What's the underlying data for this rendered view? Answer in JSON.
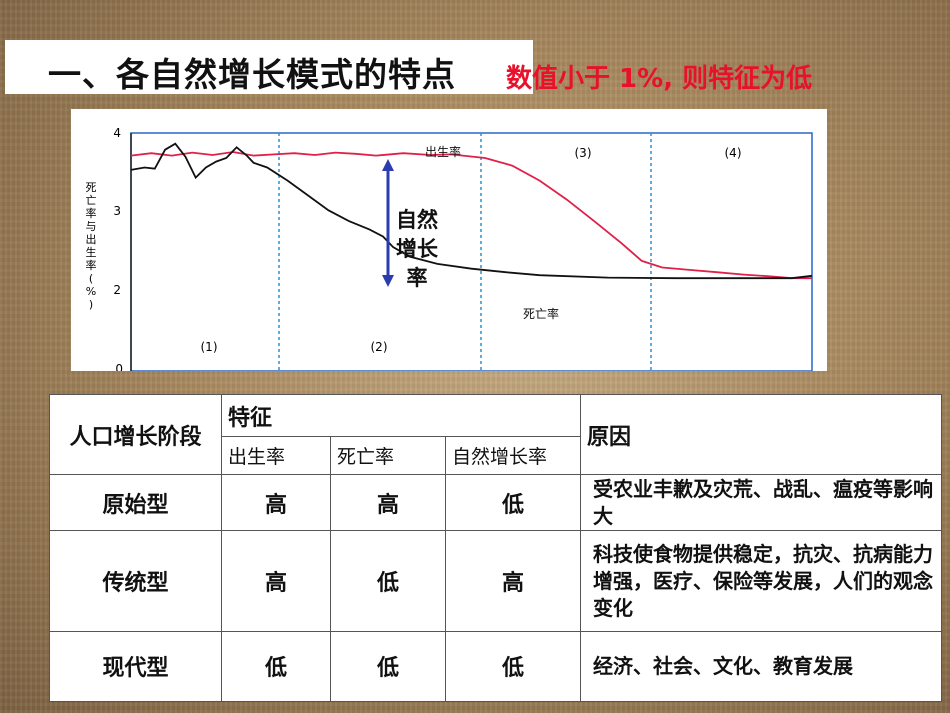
{
  "title": "一、各自然增长模式的特点",
  "title_note": "数值小于 1%, 则特征为低",
  "chart_data": {
    "type": "line",
    "ylabel": "死亡率与出生率(%)",
    "ylim": [
      0,
      4
    ],
    "yticks": [
      "4",
      "3",
      "2",
      "0"
    ],
    "stage_labels": [
      "(1)",
      "(2)",
      "(3)",
      "(4)"
    ],
    "series": [
      {
        "name": "出生率",
        "color": "#e0204a",
        "points": [
          [
            0,
            3.62
          ],
          [
            3,
            3.66
          ],
          [
            6,
            3.62
          ],
          [
            9,
            3.67
          ],
          [
            12,
            3.63
          ],
          [
            15,
            3.68
          ],
          [
            18,
            3.62
          ],
          [
            21,
            3.64
          ],
          [
            24,
            3.66
          ],
          [
            27,
            3.63
          ],
          [
            30,
            3.67
          ],
          [
            33,
            3.65
          ],
          [
            36,
            3.62
          ],
          [
            40,
            3.66
          ],
          [
            44,
            3.63
          ],
          [
            47,
            3.64
          ],
          [
            52,
            3.58
          ],
          [
            56,
            3.45
          ],
          [
            60,
            3.2
          ],
          [
            64,
            2.88
          ],
          [
            68,
            2.52
          ],
          [
            72,
            2.15
          ],
          [
            75,
            1.85
          ],
          [
            78,
            1.74
          ],
          [
            82,
            1.7
          ],
          [
            86,
            1.66
          ],
          [
            90,
            1.62
          ],
          [
            94,
            1.59
          ],
          [
            97,
            1.56
          ],
          [
            100,
            1.56
          ]
        ]
      },
      {
        "name": "死亡率",
        "color": "#111111",
        "points": [
          [
            0,
            3.38
          ],
          [
            2,
            3.42
          ],
          [
            3.5,
            3.4
          ],
          [
            5,
            3.72
          ],
          [
            6.5,
            3.82
          ],
          [
            8,
            3.6
          ],
          [
            9.5,
            3.25
          ],
          [
            11,
            3.42
          ],
          [
            12.5,
            3.52
          ],
          [
            14,
            3.58
          ],
          [
            15.5,
            3.76
          ],
          [
            17,
            3.62
          ],
          [
            18,
            3.5
          ],
          [
            20,
            3.42
          ],
          [
            23,
            3.2
          ],
          [
            26,
            2.95
          ],
          [
            29,
            2.7
          ],
          [
            32,
            2.52
          ],
          [
            35,
            2.38
          ],
          [
            37,
            2.26
          ],
          [
            38.5,
            2.08
          ],
          [
            41,
            1.92
          ],
          [
            45,
            1.8
          ],
          [
            50,
            1.72
          ],
          [
            55,
            1.66
          ],
          [
            60,
            1.61
          ],
          [
            70,
            1.57
          ],
          [
            80,
            1.56
          ],
          [
            90,
            1.56
          ],
          [
            97,
            1.56
          ],
          [
            100,
            1.6
          ]
        ]
      }
    ],
    "annotations": {
      "birth_label": "出生率",
      "death_label": "死亡率",
      "natural_growth_label": "自然增长率"
    }
  },
  "table": {
    "header": {
      "stage": "人口增长阶段",
      "features": "特征",
      "birth_rate": "出生率",
      "death_rate": "死亡率",
      "natural_growth": "自然增长率",
      "reason": "原因"
    },
    "rows": [
      {
        "stage": "原始型",
        "birth": "高",
        "death": "高",
        "growth": "低",
        "reason": "受农业丰歉及灾荒、战乱、瘟疫等影响大"
      },
      {
        "stage": "传统型",
        "birth": "高",
        "death": "低",
        "growth": "高",
        "reason": "科技使食物提供稳定，抗灾、抗病能力增强，医疗、保险等发展，人们的观念变化"
      },
      {
        "stage": "现代型",
        "birth": "低",
        "death": "低",
        "growth": "低",
        "reason": "经济、社会、文化、教育发展"
      }
    ]
  }
}
